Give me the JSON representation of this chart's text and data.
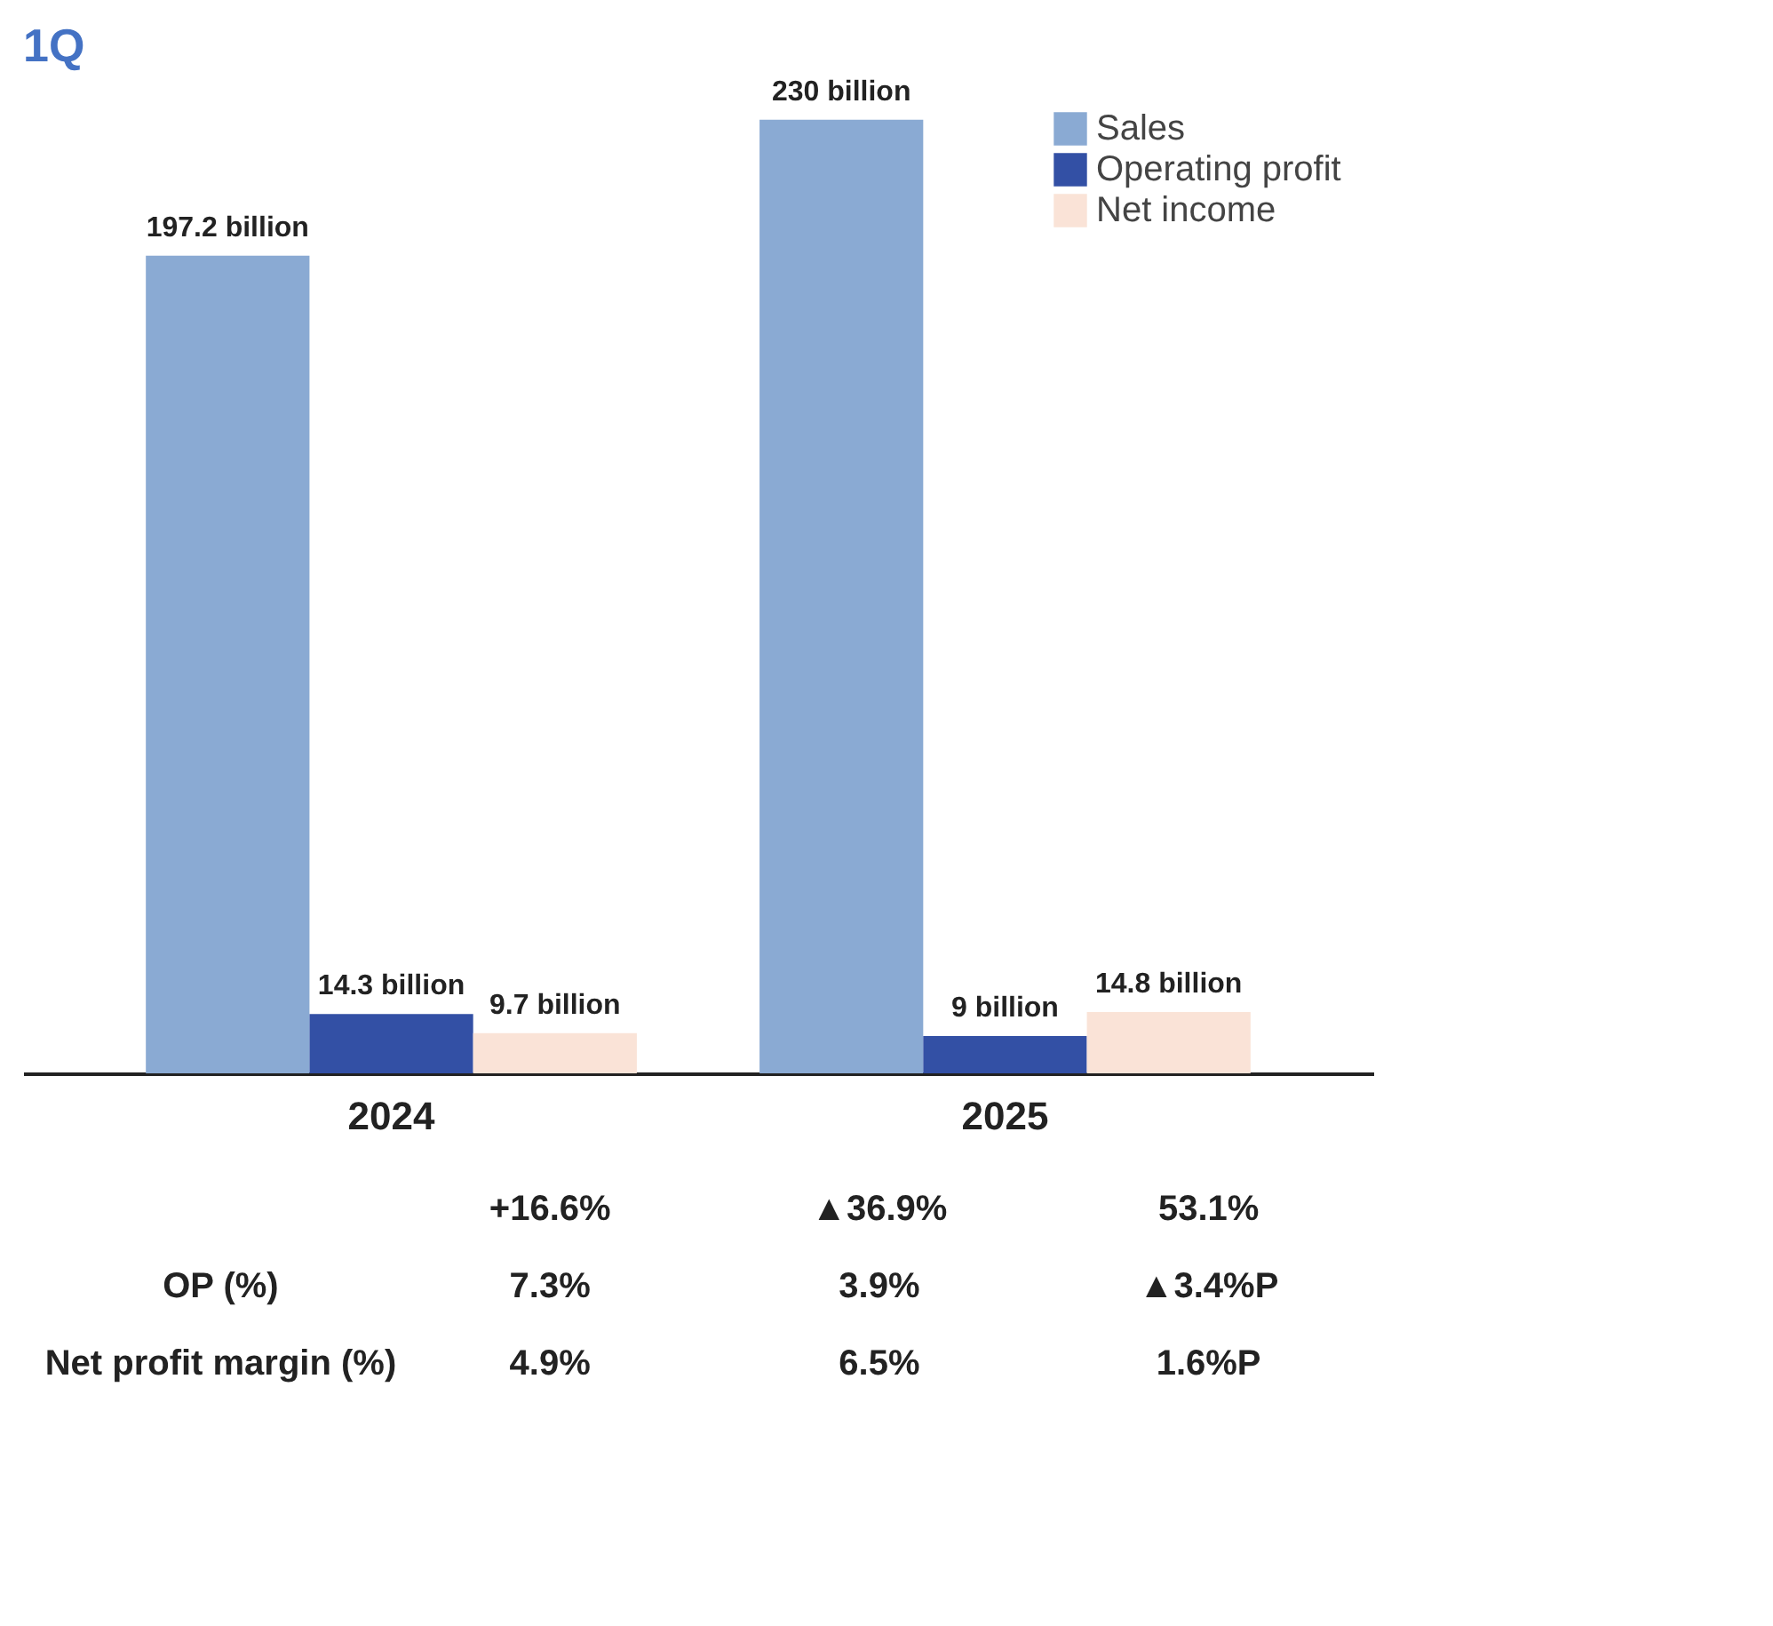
{
  "chart_data": {
    "type": "bar",
    "title": "1Q",
    "categories": [
      "2024",
      "2025"
    ],
    "series": [
      {
        "name": "Sales",
        "color": "#8aaad3",
        "values": [
          197.2,
          230
        ],
        "value_labels": [
          "197.2 billion",
          "230 billion"
        ]
      },
      {
        "name": "Operating profit",
        "color": "#3350a5",
        "values": [
          14.3,
          9
        ],
        "value_labels": [
          "14.3 billion",
          "9 billion"
        ]
      },
      {
        "name": "Net income",
        "color": "#fae3d7",
        "values": [
          9.7,
          14.8
        ],
        "value_labels": [
          "9.7 billion",
          "14.8 billion"
        ]
      }
    ],
    "legend": "top right",
    "annotations": [
      "+16.6%",
      "▲36.9%",
      "53.1%",
      "OP (%)",
      "7.3%",
      "3.9%",
      "▲3.4%P",
      "Net profit margin (%)",
      "4.9%",
      "6.5%",
      "1.6%P"
    ]
  }
}
